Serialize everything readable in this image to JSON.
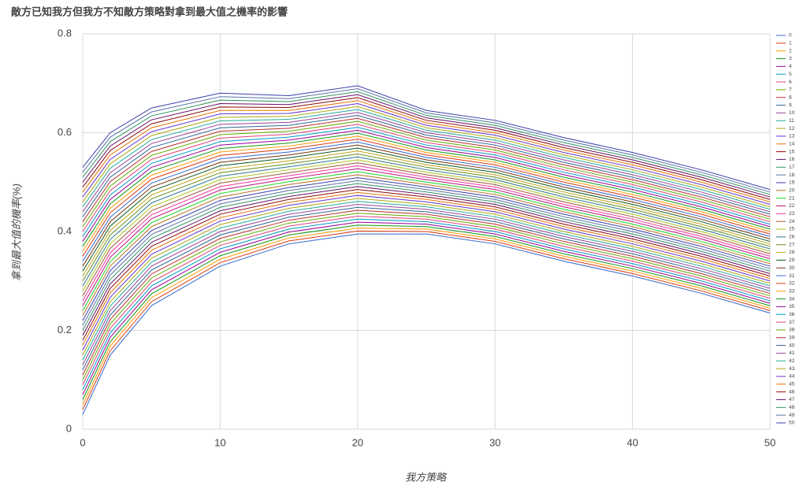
{
  "chart_data": {
    "type": "line",
    "title": "敵方已知我方但我方不知敵方策略對拿到最大值之機率的影響",
    "x_label": "我方策略",
    "y_label": "拿到最大值的機率(%)",
    "x": [
      0,
      2,
      5,
      10,
      15,
      20,
      25,
      30,
      35,
      40,
      45,
      50
    ],
    "xlim": [
      0,
      50
    ],
    "xticks": [
      0,
      10,
      20,
      30,
      40,
      50
    ],
    "ylim": [
      0,
      0.8
    ],
    "yticks": [
      0,
      0.2,
      0.4,
      0.6,
      0.8
    ],
    "grid": true,
    "legend": "right",
    "series": [
      {
        "name": "0",
        "color": "#3366cc",
        "values": [
          0.03,
          0.15,
          0.25,
          0.33,
          0.375,
          0.395,
          0.395,
          0.375,
          0.34,
          0.31,
          0.275,
          0.235
        ]
      },
      {
        "name": "1",
        "color": "#dc3912",
        "values": [
          0.04,
          0.159,
          0.258,
          0.337,
          0.381,
          0.401,
          0.4,
          0.38,
          0.345,
          0.315,
          0.28,
          0.24
        ]
      },
      {
        "name": "2",
        "color": "#ff9900",
        "values": [
          0.05,
          0.168,
          0.266,
          0.344,
          0.387,
          0.407,
          0.405,
          0.385,
          0.35,
          0.32,
          0.285,
          0.245
        ]
      },
      {
        "name": "3",
        "color": "#109618",
        "values": [
          0.06,
          0.177,
          0.274,
          0.351,
          0.393,
          0.413,
          0.41,
          0.39,
          0.355,
          0.325,
          0.29,
          0.25
        ]
      },
      {
        "name": "4",
        "color": "#990099",
        "values": [
          0.07,
          0.186,
          0.282,
          0.358,
          0.399,
          0.419,
          0.415,
          0.395,
          0.36,
          0.33,
          0.295,
          0.255
        ]
      },
      {
        "name": "5",
        "color": "#0099c6",
        "values": [
          0.08,
          0.195,
          0.29,
          0.365,
          0.405,
          0.425,
          0.42,
          0.4,
          0.365,
          0.335,
          0.3,
          0.26
        ]
      },
      {
        "name": "6",
        "color": "#dd4477",
        "values": [
          0.09,
          0.204,
          0.298,
          0.372,
          0.411,
          0.431,
          0.425,
          0.405,
          0.37,
          0.34,
          0.305,
          0.265
        ]
      },
      {
        "name": "7",
        "color": "#66aa00",
        "values": [
          0.1,
          0.213,
          0.306,
          0.379,
          0.417,
          0.437,
          0.43,
          0.41,
          0.375,
          0.345,
          0.31,
          0.27
        ]
      },
      {
        "name": "8",
        "color": "#b82e2e",
        "values": [
          0.11,
          0.222,
          0.314,
          0.386,
          0.423,
          0.443,
          0.435,
          0.415,
          0.38,
          0.35,
          0.315,
          0.275
        ]
      },
      {
        "name": "9",
        "color": "#316395",
        "values": [
          0.12,
          0.231,
          0.322,
          0.393,
          0.429,
          0.449,
          0.44,
          0.42,
          0.385,
          0.355,
          0.32,
          0.28
        ]
      },
      {
        "name": "10",
        "color": "#994499",
        "values": [
          0.13,
          0.24,
          0.33,
          0.4,
          0.435,
          0.455,
          0.445,
          0.425,
          0.39,
          0.36,
          0.325,
          0.285
        ]
      },
      {
        "name": "11",
        "color": "#22aa99",
        "values": [
          0.14,
          0.249,
          0.338,
          0.407,
          0.441,
          0.461,
          0.45,
          0.43,
          0.395,
          0.365,
          0.33,
          0.29
        ]
      },
      {
        "name": "12",
        "color": "#aaaa11",
        "values": [
          0.15,
          0.258,
          0.346,
          0.414,
          0.447,
          0.467,
          0.455,
          0.435,
          0.4,
          0.37,
          0.335,
          0.295
        ]
      },
      {
        "name": "13",
        "color": "#6633cc",
        "values": [
          0.16,
          0.267,
          0.354,
          0.421,
          0.453,
          0.473,
          0.46,
          0.44,
          0.405,
          0.375,
          0.34,
          0.3
        ]
      },
      {
        "name": "14",
        "color": "#e67300",
        "values": [
          0.17,
          0.276,
          0.362,
          0.428,
          0.459,
          0.479,
          0.465,
          0.445,
          0.41,
          0.38,
          0.345,
          0.305
        ]
      },
      {
        "name": "15",
        "color": "#8b0707",
        "values": [
          0.18,
          0.285,
          0.37,
          0.435,
          0.465,
          0.485,
          0.47,
          0.45,
          0.415,
          0.385,
          0.35,
          0.31
        ]
      },
      {
        "name": "16",
        "color": "#651067",
        "values": [
          0.19,
          0.294,
          0.378,
          0.442,
          0.471,
          0.491,
          0.475,
          0.455,
          0.42,
          0.39,
          0.355,
          0.315
        ]
      },
      {
        "name": "17",
        "color": "#329262",
        "values": [
          0.2,
          0.303,
          0.386,
          0.449,
          0.477,
          0.497,
          0.48,
          0.46,
          0.425,
          0.395,
          0.36,
          0.32
        ]
      },
      {
        "name": "18",
        "color": "#5574a6",
        "values": [
          0.21,
          0.312,
          0.394,
          0.456,
          0.483,
          0.503,
          0.485,
          0.465,
          0.43,
          0.4,
          0.365,
          0.325
        ]
      },
      {
        "name": "19",
        "color": "#3b3eac",
        "values": [
          0.22,
          0.321,
          0.402,
          0.463,
          0.489,
          0.509,
          0.49,
          0.47,
          0.435,
          0.405,
          0.37,
          0.33
        ]
      },
      {
        "name": "20",
        "color": "#b77322",
        "values": [
          0.23,
          0.33,
          0.41,
          0.47,
          0.495,
          0.515,
          0.495,
          0.475,
          0.44,
          0.41,
          0.375,
          0.335
        ]
      },
      {
        "name": "21",
        "color": "#16d620",
        "values": [
          0.24,
          0.339,
          0.418,
          0.477,
          0.501,
          0.521,
          0.5,
          0.48,
          0.445,
          0.415,
          0.38,
          0.34
        ]
      },
      {
        "name": "22",
        "color": "#b91383",
        "values": [
          0.25,
          0.348,
          0.426,
          0.484,
          0.507,
          0.527,
          0.505,
          0.485,
          0.45,
          0.42,
          0.385,
          0.345
        ]
      },
      {
        "name": "23",
        "color": "#f4359e",
        "values": [
          0.26,
          0.357,
          0.434,
          0.491,
          0.513,
          0.533,
          0.51,
          0.49,
          0.455,
          0.425,
          0.39,
          0.35
        ]
      },
      {
        "name": "24",
        "color": "#9c5935",
        "values": [
          0.27,
          0.366,
          0.442,
          0.498,
          0.519,
          0.539,
          0.515,
          0.495,
          0.46,
          0.43,
          0.395,
          0.355
        ]
      },
      {
        "name": "25",
        "color": "#a9c413",
        "values": [
          0.28,
          0.375,
          0.45,
          0.505,
          0.525,
          0.545,
          0.52,
          0.5,
          0.465,
          0.435,
          0.4,
          0.36
        ]
      },
      {
        "name": "26",
        "color": "#2a778d",
        "values": [
          0.29,
          0.384,
          0.458,
          0.512,
          0.531,
          0.551,
          0.525,
          0.505,
          0.47,
          0.44,
          0.405,
          0.365
        ]
      },
      {
        "name": "27",
        "color": "#668d1c",
        "values": [
          0.3,
          0.393,
          0.466,
          0.519,
          0.537,
          0.557,
          0.53,
          0.51,
          0.475,
          0.445,
          0.41,
          0.37
        ]
      },
      {
        "name": "28",
        "color": "#bea413",
        "values": [
          0.31,
          0.402,
          0.474,
          0.526,
          0.543,
          0.563,
          0.535,
          0.515,
          0.48,
          0.45,
          0.415,
          0.375
        ]
      },
      {
        "name": "29",
        "color": "#0c5922",
        "values": [
          0.32,
          0.411,
          0.482,
          0.533,
          0.549,
          0.569,
          0.54,
          0.52,
          0.485,
          0.455,
          0.42,
          0.38
        ]
      },
      {
        "name": "30",
        "color": "#743411",
        "values": [
          0.33,
          0.42,
          0.49,
          0.54,
          0.555,
          0.575,
          0.545,
          0.525,
          0.49,
          0.46,
          0.425,
          0.385
        ]
      },
      {
        "name": "31",
        "color": "#3366cc",
        "values": [
          0.34,
          0.429,
          0.498,
          0.547,
          0.561,
          0.581,
          0.55,
          0.53,
          0.495,
          0.465,
          0.43,
          0.39
        ]
      },
      {
        "name": "32",
        "color": "#dc3912",
        "values": [
          0.35,
          0.438,
          0.506,
          0.554,
          0.567,
          0.587,
          0.555,
          0.535,
          0.5,
          0.47,
          0.435,
          0.395
        ]
      },
      {
        "name": "33",
        "color": "#ff9900",
        "values": [
          0.36,
          0.447,
          0.514,
          0.561,
          0.573,
          0.593,
          0.56,
          0.54,
          0.505,
          0.475,
          0.44,
          0.4
        ]
      },
      {
        "name": "34",
        "color": "#109618",
        "values": [
          0.37,
          0.456,
          0.522,
          0.568,
          0.579,
          0.599,
          0.565,
          0.545,
          0.51,
          0.48,
          0.445,
          0.405
        ]
      },
      {
        "name": "35",
        "color": "#990099",
        "values": [
          0.38,
          0.465,
          0.53,
          0.575,
          0.585,
          0.605,
          0.57,
          0.55,
          0.515,
          0.485,
          0.45,
          0.41
        ]
      },
      {
        "name": "36",
        "color": "#0099c6",
        "values": [
          0.39,
          0.474,
          0.538,
          0.582,
          0.591,
          0.611,
          0.575,
          0.555,
          0.52,
          0.49,
          0.455,
          0.415
        ]
      },
      {
        "name": "37",
        "color": "#dd4477",
        "values": [
          0.4,
          0.483,
          0.546,
          0.589,
          0.597,
          0.617,
          0.58,
          0.56,
          0.525,
          0.495,
          0.46,
          0.42
        ]
      },
      {
        "name": "38",
        "color": "#66aa00",
        "values": [
          0.41,
          0.492,
          0.554,
          0.596,
          0.603,
          0.623,
          0.585,
          0.565,
          0.53,
          0.5,
          0.465,
          0.425
        ]
      },
      {
        "name": "39",
        "color": "#b82e2e",
        "values": [
          0.42,
          0.501,
          0.562,
          0.603,
          0.609,
          0.629,
          0.59,
          0.57,
          0.535,
          0.505,
          0.47,
          0.43
        ]
      },
      {
        "name": "40",
        "color": "#316395",
        "values": [
          0.43,
          0.51,
          0.57,
          0.61,
          0.615,
          0.635,
          0.595,
          0.575,
          0.54,
          0.51,
          0.475,
          0.435
        ]
      },
      {
        "name": "41",
        "color": "#994499",
        "values": [
          0.44,
          0.519,
          0.578,
          0.617,
          0.621,
          0.641,
          0.6,
          0.58,
          0.545,
          0.515,
          0.48,
          0.44
        ]
      },
      {
        "name": "42",
        "color": "#22aa99",
        "values": [
          0.45,
          0.528,
          0.586,
          0.624,
          0.627,
          0.647,
          0.605,
          0.585,
          0.55,
          0.52,
          0.485,
          0.445
        ]
      },
      {
        "name": "43",
        "color": "#aaaa11",
        "values": [
          0.46,
          0.537,
          0.594,
          0.631,
          0.633,
          0.653,
          0.61,
          0.59,
          0.555,
          0.525,
          0.49,
          0.45
        ]
      },
      {
        "name": "44",
        "color": "#6633cc",
        "values": [
          0.47,
          0.546,
          0.602,
          0.638,
          0.639,
          0.659,
          0.615,
          0.595,
          0.56,
          0.53,
          0.495,
          0.455
        ]
      },
      {
        "name": "45",
        "color": "#e67300",
        "values": [
          0.48,
          0.555,
          0.61,
          0.645,
          0.645,
          0.665,
          0.62,
          0.6,
          0.565,
          0.535,
          0.5,
          0.46
        ]
      },
      {
        "name": "46",
        "color": "#8b0707",
        "values": [
          0.49,
          0.564,
          0.618,
          0.652,
          0.651,
          0.671,
          0.625,
          0.605,
          0.57,
          0.54,
          0.505,
          0.465
        ]
      },
      {
        "name": "47",
        "color": "#651067",
        "values": [
          0.5,
          0.573,
          0.626,
          0.659,
          0.657,
          0.677,
          0.63,
          0.61,
          0.575,
          0.545,
          0.51,
          0.47
        ]
      },
      {
        "name": "48",
        "color": "#329262",
        "values": [
          0.51,
          0.582,
          0.634,
          0.666,
          0.663,
          0.683,
          0.635,
          0.615,
          0.58,
          0.55,
          0.515,
          0.475
        ]
      },
      {
        "name": "49",
        "color": "#5574a6",
        "values": [
          0.52,
          0.591,
          0.642,
          0.673,
          0.669,
          0.689,
          0.64,
          0.62,
          0.585,
          0.555,
          0.52,
          0.48
        ]
      },
      {
        "name": "50",
        "color": "#3b3eac",
        "values": [
          0.53,
          0.6,
          0.65,
          0.68,
          0.675,
          0.695,
          0.645,
          0.625,
          0.59,
          0.56,
          0.525,
          0.485
        ]
      }
    ]
  }
}
